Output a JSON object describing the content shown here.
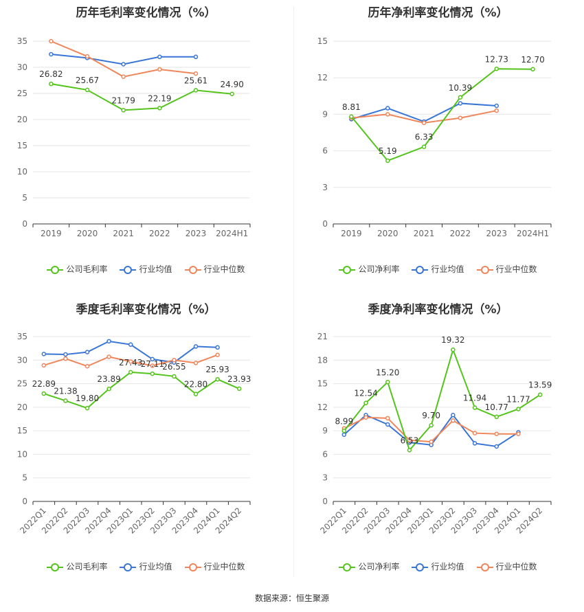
{
  "source_text": "数据来源：恒生聚源",
  "chart_data": [
    {
      "type": "line",
      "title": "历年毛利率变化情况（%）",
      "categories": [
        "2019",
        "2020",
        "2021",
        "2022",
        "2023",
        "2024H1"
      ],
      "ylim": [
        0,
        35
      ],
      "yticks": [
        0,
        5,
        10,
        15,
        20,
        25,
        30,
        35
      ],
      "legend_position": "bottom",
      "series": [
        {
          "name": "公司毛利率",
          "color": "#52c41a",
          "values": [
            26.82,
            25.67,
            21.79,
            22.19,
            25.61,
            24.9
          ],
          "labels": [
            "26.82",
            "25.67",
            "21.79",
            "22.19",
            "25.61",
            "24.90"
          ]
        },
        {
          "name": "行业均值",
          "color": "#3875d7",
          "values": [
            32.5,
            31.8,
            30.6,
            32.0,
            32.0,
            null
          ]
        },
        {
          "name": "行业中位数",
          "color": "#f0855a",
          "values": [
            35.0,
            32.1,
            28.2,
            29.6,
            28.8,
            null
          ]
        }
      ]
    },
    {
      "type": "line",
      "title": "历年净利率变化情况（%）",
      "categories": [
        "2019",
        "2020",
        "2021",
        "2022",
        "2023",
        "2024H1"
      ],
      "ylim": [
        0,
        15
      ],
      "yticks": [
        0,
        3,
        6,
        9,
        12,
        15
      ],
      "legend_position": "bottom",
      "series": [
        {
          "name": "公司净利率",
          "color": "#52c41a",
          "values": [
            8.81,
            5.19,
            6.33,
            10.39,
            12.73,
            12.7
          ],
          "labels": [
            "8.81",
            "5.19",
            "6.33",
            "10.39",
            "12.73",
            "12.70"
          ]
        },
        {
          "name": "行业均值",
          "color": "#3875d7",
          "values": [
            8.6,
            9.5,
            8.4,
            9.9,
            9.7,
            null
          ]
        },
        {
          "name": "行业中位数",
          "color": "#f0855a",
          "values": [
            8.7,
            9.0,
            8.3,
            8.7,
            9.3,
            null
          ]
        }
      ]
    },
    {
      "type": "line",
      "title": "季度毛利率变化情况（%）",
      "categories": [
        "2022Q1",
        "2022Q2",
        "2022Q3",
        "2022Q4",
        "2023Q1",
        "2023Q2",
        "2023Q3",
        "2023Q4",
        "2024Q1",
        "2024Q2"
      ],
      "ylim": [
        0,
        35
      ],
      "yticks": [
        0,
        5,
        10,
        15,
        20,
        25,
        30,
        35
      ],
      "legend_position": "bottom",
      "series": [
        {
          "name": "公司毛利率",
          "color": "#52c41a",
          "values": [
            22.89,
            21.38,
            19.8,
            23.89,
            27.43,
            27.11,
            26.55,
            22.8,
            25.93,
            23.93
          ],
          "labels": [
            "22.89",
            "21.38",
            "19.80",
            "23.89",
            "27.43",
            "27.11",
            "26.55",
            "22.80",
            "25.93",
            "23.93"
          ]
        },
        {
          "name": "行业均值",
          "color": "#3875d7",
          "values": [
            31.3,
            31.2,
            31.7,
            34.0,
            33.3,
            30.2,
            29.5,
            32.9,
            32.7,
            null
          ]
        },
        {
          "name": "行业中位数",
          "color": "#f0855a",
          "values": [
            28.9,
            30.3,
            28.7,
            30.7,
            29.7,
            28.8,
            30.0,
            29.4,
            31.1,
            null
          ]
        }
      ]
    },
    {
      "type": "line",
      "title": "季度净利率变化情况（%）",
      "categories": [
        "2022Q1",
        "2022Q2",
        "2022Q3",
        "2022Q4",
        "2023Q1",
        "2023Q2",
        "2023Q3",
        "2023Q4",
        "2024Q1",
        "2024Q2"
      ],
      "ylim": [
        0,
        21
      ],
      "yticks": [
        0,
        3,
        6,
        9,
        12,
        15,
        18,
        21
      ],
      "legend_position": "bottom",
      "series": [
        {
          "name": "公司净利率",
          "color": "#52c41a",
          "values": [
            8.99,
            12.54,
            15.2,
            6.53,
            9.7,
            19.32,
            11.94,
            10.77,
            11.77,
            13.59
          ],
          "labels": [
            "8.99",
            "12.54",
            "15.20",
            "6.53",
            "9.70",
            "19.32",
            "11.94",
            "10.77",
            "11.77",
            "13.59"
          ]
        },
        {
          "name": "行业均值",
          "color": "#3875d7",
          "values": [
            8.5,
            11.0,
            9.8,
            7.5,
            7.2,
            11.0,
            7.4,
            7.0,
            8.8,
            null
          ]
        },
        {
          "name": "行业中位数",
          "color": "#f0855a",
          "values": [
            9.3,
            10.7,
            10.6,
            7.8,
            7.6,
            10.3,
            8.7,
            8.6,
            8.6,
            null
          ]
        }
      ]
    }
  ]
}
